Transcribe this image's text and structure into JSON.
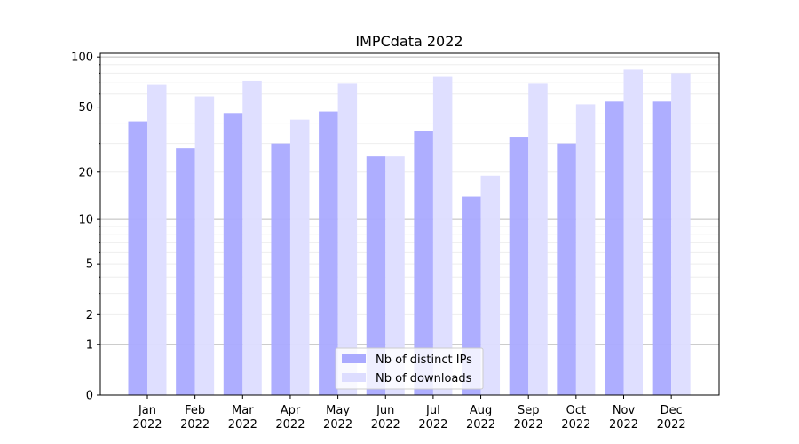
{
  "chart_data": {
    "type": "bar",
    "title": "IMPCdata 2022",
    "xlabel": "",
    "ylabel": "",
    "yscale": "log(1+y)",
    "ylim": [
      0,
      105
    ],
    "yticks": [
      0,
      1,
      2,
      5,
      10,
      20,
      50,
      100
    ],
    "grid": true,
    "legend_position": "bottom-center",
    "categories": [
      "Jan\n2022",
      "Feb\n2022",
      "Mar\n2022",
      "Apr\n2022",
      "May\n2022",
      "Jun\n2022",
      "Jul\n2022",
      "Aug\n2022",
      "Sep\n2022",
      "Oct\n2022",
      "Nov\n2022",
      "Dec\n2022"
    ],
    "series": [
      {
        "name": "Nb of distinct IPs",
        "color": "#aaaaff",
        "values": [
          41,
          28,
          46,
          30,
          47,
          25,
          36,
          14,
          33,
          30,
          54,
          54
        ]
      },
      {
        "name": "Nb of downloads",
        "color": "#ddddff",
        "values": [
          68,
          58,
          72,
          42,
          69,
          25,
          76,
          19,
          69,
          52,
          84,
          80
        ]
      }
    ]
  }
}
